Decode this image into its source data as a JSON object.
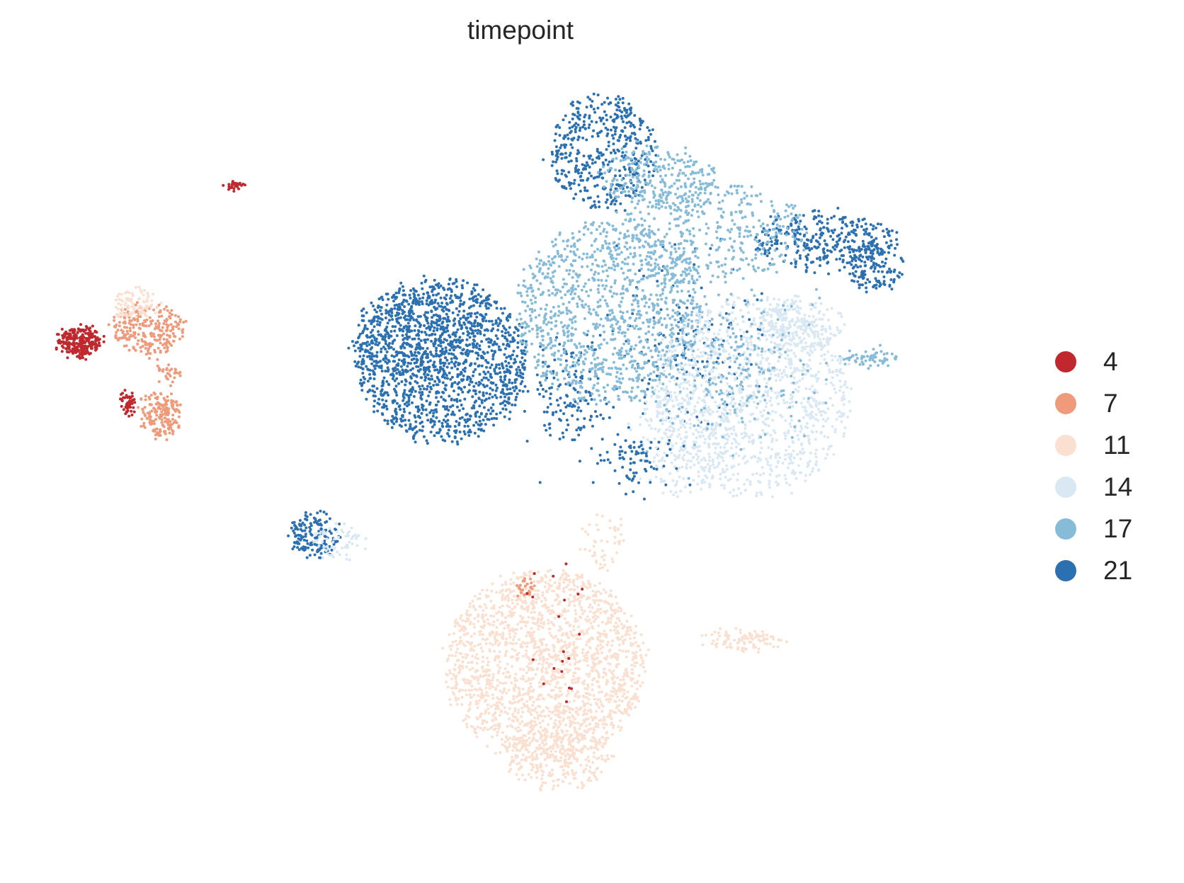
{
  "chart_data": {
    "type": "scatter",
    "title": "timepoint",
    "xlabel": "",
    "ylabel": "",
    "grid": false,
    "legend_placement": "right",
    "series": [
      {
        "name": "4",
        "color": "#c0282d"
      },
      {
        "name": "7",
        "color": "#ef9a7a"
      },
      {
        "name": "11",
        "color": "#fae0d0"
      },
      {
        "name": "14",
        "color": "#d9e8f2"
      },
      {
        "name": "17",
        "color": "#87bcd9"
      },
      {
        "name": "21",
        "color": "#2b70b0"
      }
    ]
  }
}
